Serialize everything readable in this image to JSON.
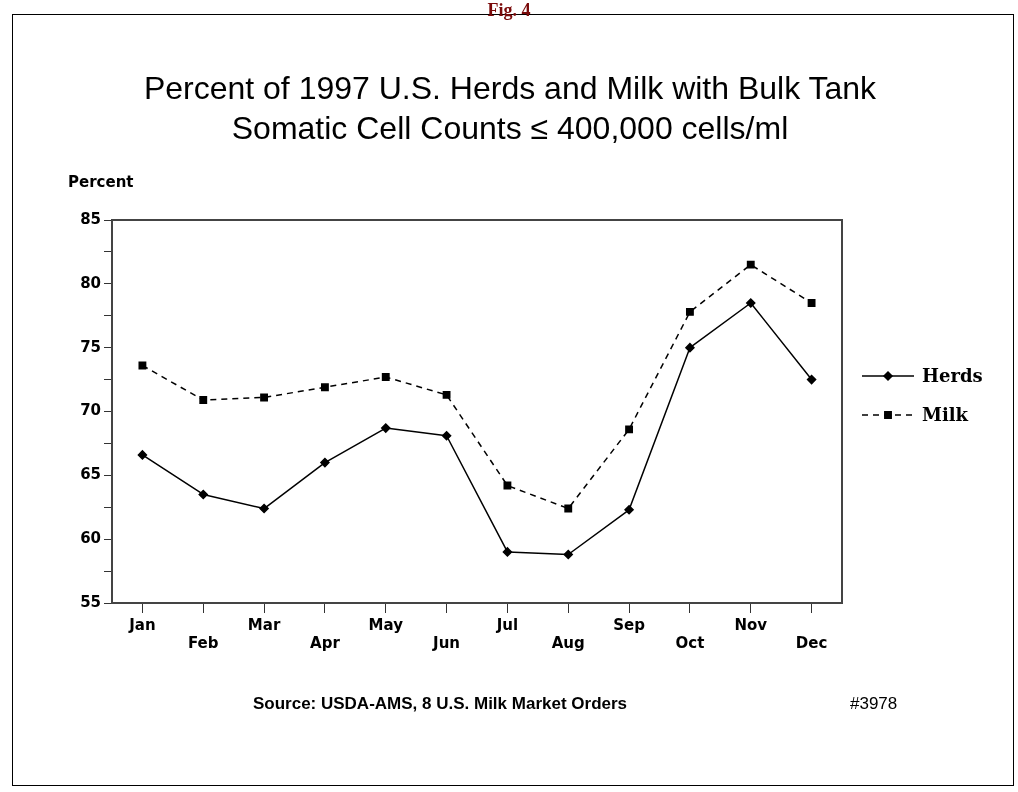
{
  "chart_data": {
    "type": "line",
    "title": "Percent of 1997 U.S. Herds and Milk with Bulk Tank Somatic Cell Counts ≤ 400,000 cells/ml",
    "ylabel": "Percent",
    "categories": [
      "Jan",
      "Feb",
      "Mar",
      "Apr",
      "May",
      "Jun",
      "Jul",
      "Aug",
      "Sep",
      "Oct",
      "Nov",
      "Dec"
    ],
    "series": [
      {
        "name": "Herds",
        "color": "#000000",
        "marker": "diamond",
        "line_style": "solid",
        "values": [
          66.6,
          63.5,
          62.4,
          66.0,
          68.7,
          68.1,
          59.0,
          58.8,
          62.3,
          75.0,
          78.5,
          72.5
        ]
      },
      {
        "name": "Milk",
        "color": "#000000",
        "marker": "square",
        "line_style": "dashed",
        "values": [
          73.6,
          70.9,
          71.1,
          71.9,
          72.7,
          71.3,
          64.2,
          62.4,
          68.6,
          77.8,
          81.5,
          78.5
        ]
      }
    ],
    "ylim": [
      55,
      85
    ],
    "yticks": [
      55,
      {
        "value": 57.5,
        "label": null
      },
      60,
      {
        "value": 62.5,
        "label": null
      },
      65,
      {
        "value": 67.5,
        "label": null
      },
      70,
      {
        "value": 72.5,
        "label": null
      },
      75,
      {
        "value": 77.5,
        "label": null
      },
      80,
      {
        "value": 82.5,
        "label": null
      },
      85
    ],
    "grid": false,
    "legend": "right",
    "annotations": [
      "Fig. 4",
      "Source: USDA-AMS, 8 U.S. Milk Market Orders",
      "#3978"
    ]
  }
}
